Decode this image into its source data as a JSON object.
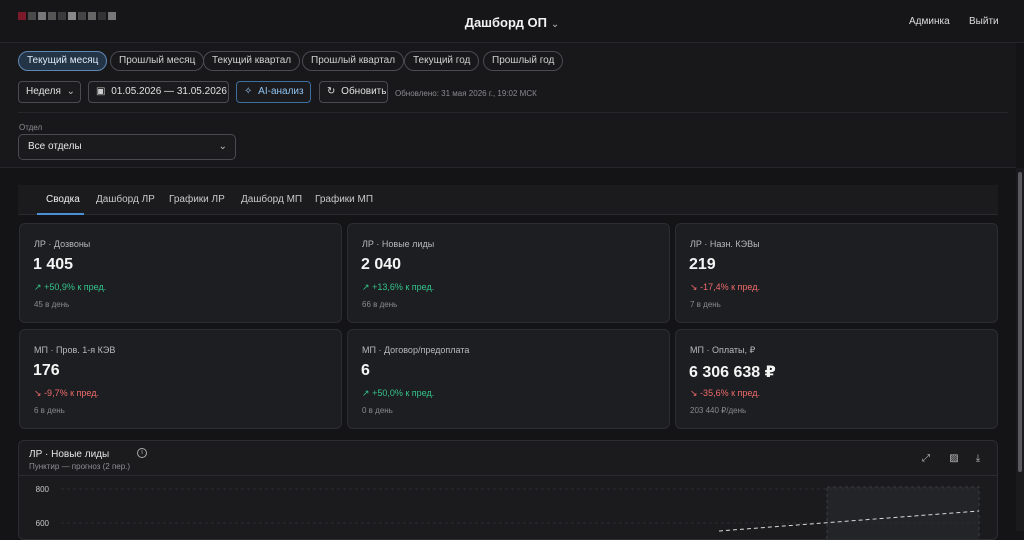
{
  "header": {
    "title": "Дашборд ОП",
    "admin_label": "Админка",
    "logout_label": "Выйти"
  },
  "periods": [
    "Текущий месяц",
    "Прошлый месяц",
    "Текущий квартал",
    "Прошлый квартал",
    "Текущий год",
    "Прошлый год"
  ],
  "controls": {
    "granularity": "Неделя",
    "date_range": "01.05.2026 — 31.05.2026",
    "ai_label": "AI-анализ",
    "refresh_label": "Обновить",
    "updated_text": "Обновлено: 31 мая 2026 г., 19:02 МСК"
  },
  "department": {
    "label": "Отдел",
    "value": "Все отделы"
  },
  "tabs": [
    "Сводка",
    "Дашборд ЛР",
    "Графики ЛР",
    "Дашборд МП",
    "Графики МП"
  ],
  "cards": [
    {
      "title": "ЛР · Дозвоны",
      "value": "1 405",
      "change": "+50,9% к пред.",
      "trend": "up",
      "sub": "45 в день"
    },
    {
      "title": "ЛР · Новые лиды",
      "value": "2 040",
      "change": "+13,6% к пред.",
      "trend": "up",
      "sub": "66 в день"
    },
    {
      "title": "ЛР · Назн. КЭВы",
      "value": "219",
      "change": "-17,4% к пред.",
      "trend": "down",
      "sub": "7 в день"
    },
    {
      "title": "МП · Пров. 1-я КЭВ",
      "value": "176",
      "change": "-9,7% к пред.",
      "trend": "down",
      "sub": "6 в день"
    },
    {
      "title": "МП · Договор/предоплата",
      "value": "6",
      "change": "+50,0% к пред.",
      "trend": "up",
      "sub": "0 в день"
    },
    {
      "title": "МП · Оплаты, ₽",
      "value": "6 306 638 ₽",
      "change": "-35,6% к пред.",
      "trend": "down",
      "sub": "203 440 ₽/день"
    }
  ],
  "chart": {
    "title": "ЛР · Новые лиды",
    "subtitle": "Пунктир — прогноз (2 пер.)",
    "y_ticks": [
      "800",
      "600"
    ]
  },
  "chart_data": {
    "type": "line",
    "title": "ЛР · Новые лиды",
    "yticks": [
      800,
      600
    ],
    "legend": "Пунктир — прогноз (2 пер.)"
  },
  "colors": {
    "accent": "#4c8fd6",
    "positive": "#34c48a",
    "negative": "#ef6b6b"
  }
}
